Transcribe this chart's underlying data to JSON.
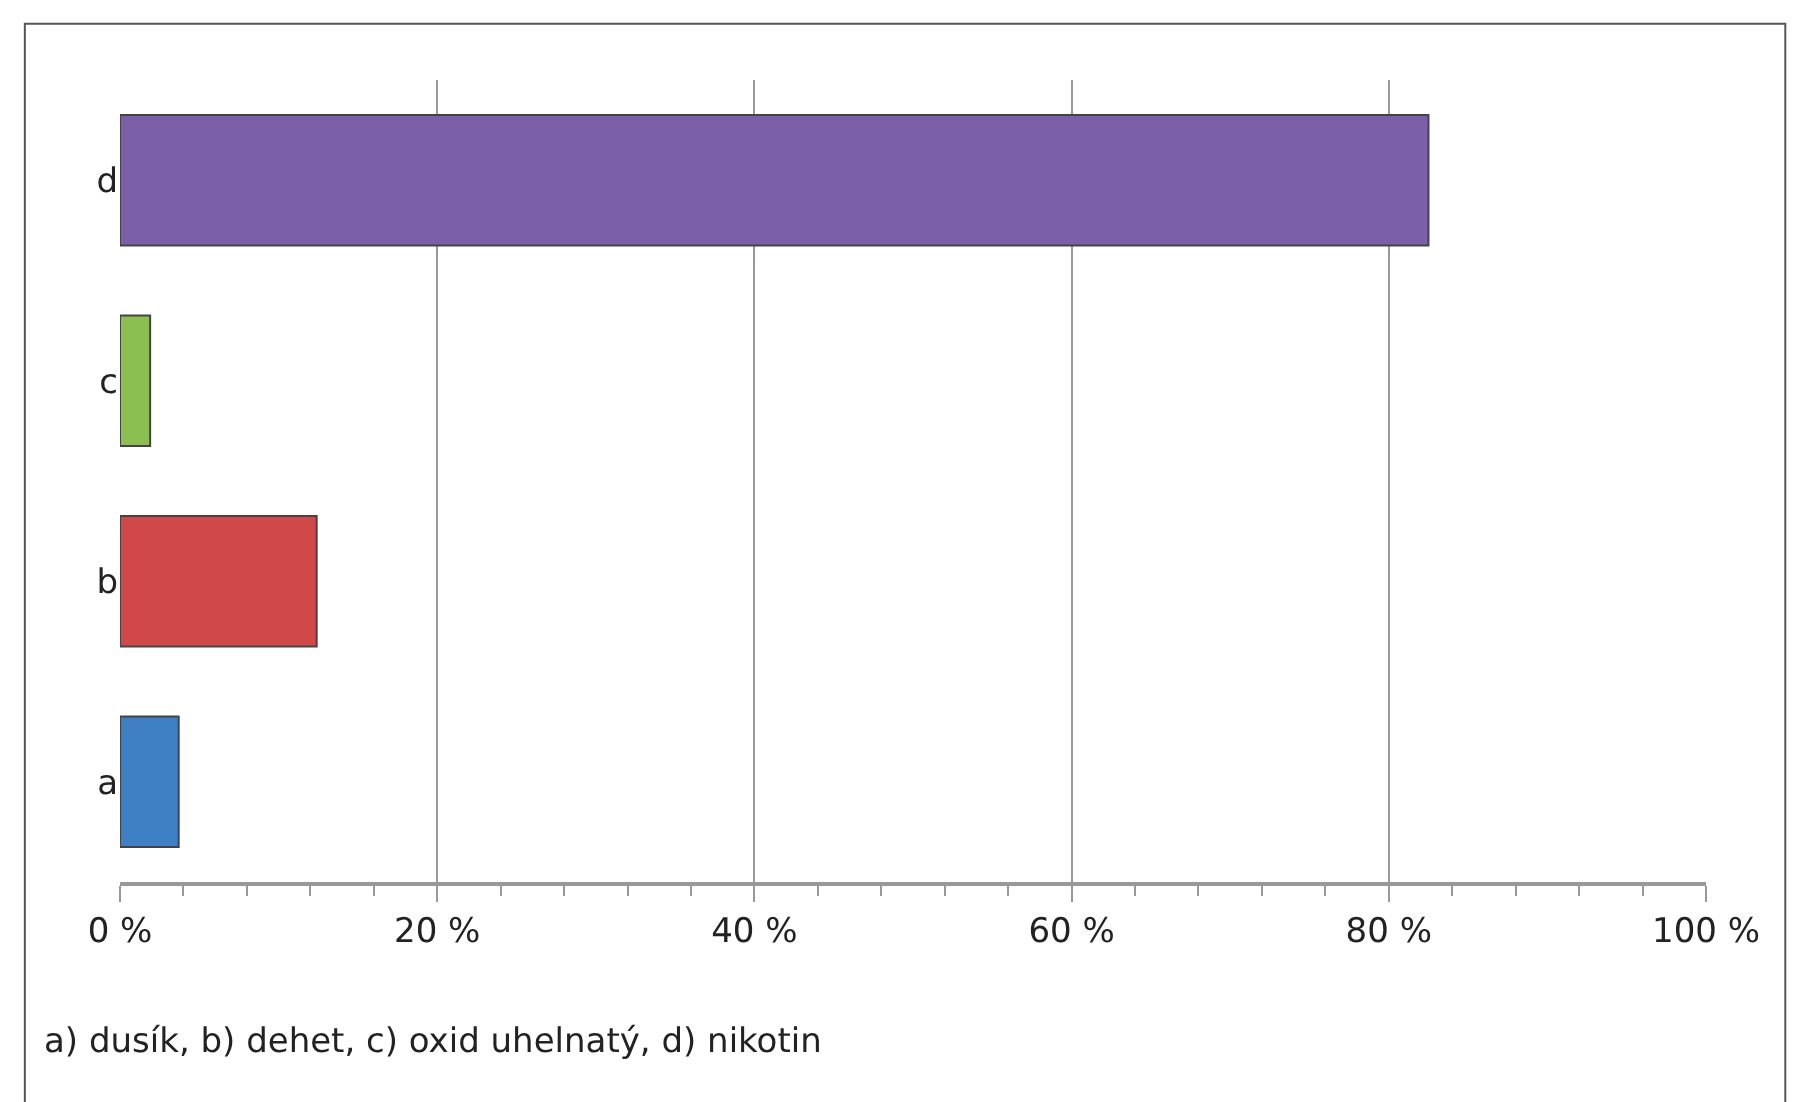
{
  "chart_data": {
    "type": "bar",
    "orientation": "horizontal",
    "categories": [
      "d",
      "c",
      "b",
      "a"
    ],
    "values": [
      82.5,
      1.9,
      12.4,
      3.7
    ],
    "colors": [
      "#7b5fa8",
      "#8cbf52",
      "#d04848",
      "#3f7fc4"
    ],
    "xlim": [
      0,
      100
    ],
    "xticks": [
      {
        "value": 0,
        "label": "0 %"
      },
      {
        "value": 20,
        "label": "20 %"
      },
      {
        "value": 40,
        "label": "40 %"
      },
      {
        "value": 60,
        "label": "60 %"
      },
      {
        "value": 80,
        "label": "80 %"
      },
      {
        "value": 100,
        "label": "100 %"
      }
    ],
    "grid": "x",
    "annotations": [
      "a) dusík, b) dehet, c) oxid uhelnatý, d) nikotin"
    ]
  }
}
